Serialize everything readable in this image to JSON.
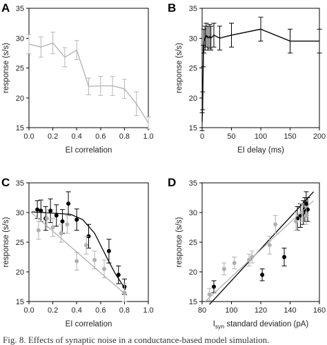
{
  "chart_data": [
    {
      "panel": "A",
      "type": "line",
      "xlabel": "EI correlation",
      "ylabel": "response (s/s)",
      "xlim": [
        0,
        1
      ],
      "ylim": [
        15,
        35
      ],
      "xticks": [
        0.0,
        0.2,
        0.4,
        0.6,
        0.8,
        1.0
      ],
      "xtick_labels": [
        "0.0",
        "0.2",
        "0.4",
        "0.6",
        "0.8",
        "1.0"
      ],
      "yticks": [
        15,
        20,
        25,
        30,
        35
      ],
      "ytick_labels": [
        "15",
        "20",
        "25",
        "30",
        "35"
      ],
      "grid": false,
      "series": [
        {
          "color": "#b5b5b5",
          "x": [
            0.0,
            0.1,
            0.2,
            0.3,
            0.4,
            0.5,
            0.6,
            0.7,
            0.8,
            0.9,
            1.0
          ],
          "y": [
            29.0,
            28.5,
            29.2,
            26.8,
            28.0,
            21.9,
            22.0,
            22.0,
            21.5,
            19.0,
            15.8
          ],
          "err": [
            1.6,
            1.7,
            1.8,
            1.6,
            1.6,
            1.4,
            1.6,
            1.6,
            1.6,
            2.0,
            1.0
          ]
        }
      ]
    },
    {
      "panel": "B",
      "type": "line",
      "xlabel": "EI delay (ms)",
      "ylabel": "response (s/s)",
      "xlim": [
        0,
        200
      ],
      "ylim": [
        15,
        35
      ],
      "xticks": [
        0,
        50,
        100,
        150,
        200
      ],
      "xtick_labels": [
        "0",
        "50",
        "100",
        "150",
        "200"
      ],
      "yticks": [
        15,
        20,
        25,
        30,
        35
      ],
      "ytick_labels": [
        "15",
        "20",
        "25",
        "30",
        "35"
      ],
      "grid": false,
      "series": [
        {
          "color": "#000000",
          "x": [
            0,
            1,
            2,
            3,
            5,
            7,
            10,
            13,
            15,
            20,
            30,
            50,
            100,
            150,
            200
          ],
          "y": [
            16.0,
            19.5,
            27.0,
            29.5,
            30.0,
            30.5,
            30.0,
            30.3,
            30.0,
            30.5,
            30.0,
            30.5,
            31.5,
            29.5,
            29.5
          ],
          "err": [
            1.5,
            1.5,
            1.8,
            2.0,
            2.0,
            2.0,
            2.0,
            2.0,
            2.0,
            2.0,
            2.0,
            2.0,
            2.0,
            2.0,
            2.0
          ]
        }
      ]
    },
    {
      "panel": "C",
      "type": "scatter",
      "xlabel": "EI correlation",
      "ylabel": "response (s/s)",
      "xlim": [
        0,
        1
      ],
      "ylim": [
        15,
        35
      ],
      "xticks": [
        0.0,
        0.2,
        0.4,
        0.6,
        0.8,
        1.0
      ],
      "xtick_labels": [
        "0.0",
        "0.2",
        "0.4",
        "0.6",
        "0.8",
        "1.0"
      ],
      "yticks": [
        15,
        20,
        25,
        30,
        35
      ],
      "ytick_labels": [
        "15",
        "20",
        "25",
        "30",
        "35"
      ],
      "grid": false,
      "series": [
        {
          "color": "#000000",
          "marker": "filled-circle",
          "x": [
            0.07,
            0.1,
            0.14,
            0.18,
            0.23,
            0.28,
            0.33,
            0.4,
            0.5,
            0.67,
            0.75,
            0.8
          ],
          "y": [
            30.5,
            30.3,
            29.0,
            30.3,
            29.5,
            28.5,
            31.5,
            28.8,
            26.0,
            23.5,
            19.5,
            17.5
          ],
          "err": [
            1.5,
            1.8,
            2.0,
            2.0,
            1.8,
            2.0,
            2.0,
            1.8,
            2.0,
            2.0,
            1.5,
            1.3
          ],
          "fit": {
            "x": [
              0.02,
              0.2,
              0.35,
              0.45,
              0.55,
              0.65,
              0.72,
              0.81
            ],
            "y": [
              30.1,
              29.9,
              29.7,
              28.8,
              26.5,
              22.5,
              19.8,
              17.0
            ]
          }
        },
        {
          "color": "#b0b0b0",
          "marker": "filled-circle",
          "x": [
            0.08,
            0.15,
            0.2,
            0.27,
            0.32,
            0.4,
            0.48,
            0.55,
            0.63,
            0.8
          ],
          "y": [
            27.0,
            29.0,
            27.5,
            26.5,
            28.0,
            21.8,
            24.5,
            22.0,
            20.5,
            16.5
          ],
          "err": [
            1.5,
            1.5,
            1.5,
            1.5,
            1.5,
            1.5,
            1.5,
            1.5,
            1.5,
            1.5
          ],
          "fit": {
            "x": [
              0.02,
              0.82
            ],
            "y": [
              30.0,
              16.0
            ]
          }
        }
      ]
    },
    {
      "panel": "D",
      "type": "scatter",
      "xlabel": "I",
      "xlabel_sub": "syn",
      "xlabel_rest": " standard deviation (pA)",
      "ylabel": "response (s/s)",
      "xlim": [
        80,
        160
      ],
      "ylim": [
        15,
        35
      ],
      "xticks": [
        80,
        100,
        120,
        140,
        160
      ],
      "xtick_labels": [
        "80",
        "100",
        "120",
        "140",
        "160"
      ],
      "yticks": [
        15,
        20,
        25,
        30,
        35
      ],
      "ytick_labels": [
        "15",
        "20",
        "25",
        "30",
        "35"
      ],
      "grid": false,
      "series": [
        {
          "color": "#000000",
          "marker": "filled-circle",
          "x": [
            88,
            121,
            136,
            145,
            147,
            149,
            150,
            151,
            152
          ],
          "y": [
            17.5,
            19.5,
            22.5,
            29.0,
            29.5,
            30.0,
            30.5,
            31.5,
            30.5
          ],
          "err": [
            1.0,
            1.0,
            1.5,
            2.0,
            2.0,
            2.0,
            2.0,
            2.0,
            2.0
          ],
          "fit": {
            "x": [
              85,
              156
            ],
            "y": [
              14.5,
              33.5
            ]
          }
        },
        {
          "color": "#b0b0b0",
          "marker": "filled-circle",
          "x": [
            85,
            95,
            102,
            112,
            114,
            126,
            130,
            144,
            148,
            151
          ],
          "y": [
            16.2,
            20.5,
            21.5,
            22.0,
            22.5,
            24.5,
            28.0,
            28.5,
            30.0,
            29.5
          ],
          "err": [
            1.0,
            1.0,
            1.0,
            1.0,
            1.0,
            1.5,
            1.5,
            1.5,
            1.5,
            1.5
          ],
          "fit": {
            "x": [
              82,
              156
            ],
            "y": [
              15.0,
              32.0
            ]
          }
        }
      ]
    }
  ],
  "caption": "Fig. 8.  Effects of synaptic noise in a conductance-based model simulation."
}
